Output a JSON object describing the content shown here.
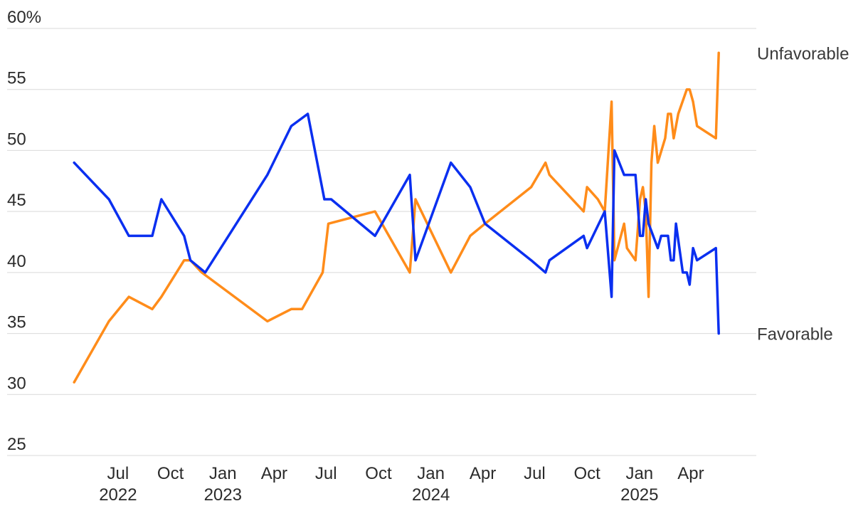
{
  "chart_data": {
    "type": "line",
    "title": "",
    "xlabel": "",
    "ylabel": "",
    "ylim": [
      25,
      60
    ],
    "xlim": [
      "2022-04-01",
      "2025-06-30"
    ],
    "y_ticks": [
      {
        "value": 60,
        "label": "60%"
      },
      {
        "value": 55,
        "label": "55"
      },
      {
        "value": 50,
        "label": "50"
      },
      {
        "value": 45,
        "label": "45"
      },
      {
        "value": 40,
        "label": "40"
      },
      {
        "value": 35,
        "label": "35"
      },
      {
        "value": 30,
        "label": "30"
      },
      {
        "value": 25,
        "label": "25"
      }
    ],
    "x_ticks": [
      {
        "date": "2022-07-01",
        "label": "Jul",
        "year": "2022"
      },
      {
        "date": "2022-10-01",
        "label": "Oct",
        "year": ""
      },
      {
        "date": "2023-01-01",
        "label": "Jan",
        "year": "2023"
      },
      {
        "date": "2023-04-01",
        "label": "Apr",
        "year": ""
      },
      {
        "date": "2023-07-01",
        "label": "Jul",
        "year": ""
      },
      {
        "date": "2023-10-01",
        "label": "Oct",
        "year": ""
      },
      {
        "date": "2024-01-01",
        "label": "Jan",
        "year": "2024"
      },
      {
        "date": "2024-04-01",
        "label": "Apr",
        "year": ""
      },
      {
        "date": "2024-07-01",
        "label": "Jul",
        "year": ""
      },
      {
        "date": "2024-10-01",
        "label": "Oct",
        "year": ""
      },
      {
        "date": "2025-01-01",
        "label": "Jan",
        "year": "2025"
      },
      {
        "date": "2025-04-01",
        "label": "Apr",
        "year": ""
      }
    ],
    "grid": true,
    "series": [
      {
        "name": "Unfavorable",
        "color": "#ff8c1a",
        "points": [
          [
            "2022-04-15",
            31
          ],
          [
            "2022-06-15",
            36
          ],
          [
            "2022-07-20",
            38
          ],
          [
            "2022-08-30",
            37
          ],
          [
            "2022-09-15",
            38
          ],
          [
            "2022-10-25",
            41
          ],
          [
            "2022-11-05",
            41
          ],
          [
            "2022-11-25",
            40
          ],
          [
            "2023-03-20",
            36
          ],
          [
            "2023-05-01",
            37
          ],
          [
            "2023-05-20",
            37
          ],
          [
            "2023-06-25",
            40
          ],
          [
            "2023-07-05",
            44
          ],
          [
            "2023-09-25",
            45
          ],
          [
            "2023-11-25",
            40
          ],
          [
            "2023-12-05",
            46
          ],
          [
            "2024-02-05",
            40
          ],
          [
            "2024-03-10",
            43
          ],
          [
            "2024-04-05",
            44
          ],
          [
            "2024-06-25",
            47
          ],
          [
            "2024-07-20",
            49
          ],
          [
            "2024-07-27",
            48
          ],
          [
            "2024-09-25",
            45
          ],
          [
            "2024-10-01",
            47
          ],
          [
            "2024-10-20",
            46
          ],
          [
            "2024-11-01",
            45
          ],
          [
            "2024-11-13",
            54
          ],
          [
            "2024-11-18",
            41
          ],
          [
            "2024-12-05",
            44
          ],
          [
            "2024-12-10",
            42
          ],
          [
            "2024-12-25",
            41
          ],
          [
            "2025-01-02",
            46
          ],
          [
            "2025-01-07",
            47
          ],
          [
            "2025-01-12",
            45
          ],
          [
            "2025-01-17",
            38
          ],
          [
            "2025-01-22",
            49
          ],
          [
            "2025-01-27",
            52
          ],
          [
            "2025-02-02",
            49
          ],
          [
            "2025-02-15",
            51
          ],
          [
            "2025-02-20",
            53
          ],
          [
            "2025-02-25",
            53
          ],
          [
            "2025-03-02",
            51
          ],
          [
            "2025-03-10",
            53
          ],
          [
            "2025-03-25",
            55
          ],
          [
            "2025-03-30",
            55
          ],
          [
            "2025-04-05",
            54
          ],
          [
            "2025-04-12",
            52
          ],
          [
            "2025-05-15",
            51
          ],
          [
            "2025-05-20",
            58
          ]
        ]
      },
      {
        "name": "Favorable",
        "color": "#0a2ff0",
        "points": [
          [
            "2022-04-15",
            49
          ],
          [
            "2022-06-15",
            46
          ],
          [
            "2022-07-20",
            43
          ],
          [
            "2022-08-30",
            43
          ],
          [
            "2022-09-15",
            46
          ],
          [
            "2022-10-25",
            43
          ],
          [
            "2022-11-05",
            41
          ],
          [
            "2022-12-01",
            40
          ],
          [
            "2023-03-20",
            48
          ],
          [
            "2023-05-01",
            52
          ],
          [
            "2023-05-30",
            53
          ],
          [
            "2023-06-28",
            46
          ],
          [
            "2023-07-10",
            46
          ],
          [
            "2023-09-25",
            43
          ],
          [
            "2023-11-25",
            48
          ],
          [
            "2023-12-05",
            41
          ],
          [
            "2024-02-05",
            49
          ],
          [
            "2024-03-10",
            47
          ],
          [
            "2024-04-05",
            44
          ],
          [
            "2024-06-25",
            41
          ],
          [
            "2024-07-20",
            40
          ],
          [
            "2024-07-27",
            41
          ],
          [
            "2024-09-25",
            43
          ],
          [
            "2024-10-01",
            42
          ],
          [
            "2024-11-01",
            45
          ],
          [
            "2024-11-13",
            38
          ],
          [
            "2024-11-18",
            50
          ],
          [
            "2024-12-05",
            48
          ],
          [
            "2024-12-25",
            48
          ],
          [
            "2025-01-02",
            43
          ],
          [
            "2025-01-07",
            43
          ],
          [
            "2025-01-12",
            46
          ],
          [
            "2025-01-17",
            44
          ],
          [
            "2025-02-02",
            42
          ],
          [
            "2025-02-08",
            43
          ],
          [
            "2025-02-20",
            43
          ],
          [
            "2025-02-25",
            41
          ],
          [
            "2025-03-02",
            41
          ],
          [
            "2025-03-06",
            44
          ],
          [
            "2025-03-12",
            42
          ],
          [
            "2025-03-18",
            40
          ],
          [
            "2025-03-25",
            40
          ],
          [
            "2025-03-30",
            39
          ],
          [
            "2025-04-05",
            42
          ],
          [
            "2025-04-12",
            41
          ],
          [
            "2025-05-15",
            42
          ],
          [
            "2025-05-20",
            35
          ]
        ]
      }
    ]
  }
}
